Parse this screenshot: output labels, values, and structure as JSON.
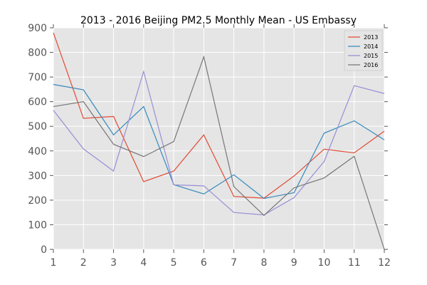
{
  "chart_data": {
    "type": "line",
    "title": "2013 - 2016 Beijing PM2.5 Monthly Mean - US Embassy",
    "xlabel": "",
    "ylabel": "",
    "x": [
      1,
      2,
      3,
      4,
      5,
      6,
      7,
      8,
      9,
      10,
      11,
      12
    ],
    "xlim": [
      1,
      12
    ],
    "ylim": [
      0,
      900
    ],
    "yticks": [
      0,
      100,
      200,
      300,
      400,
      500,
      600,
      700,
      800,
      900
    ],
    "xticks": [
      1,
      2,
      3,
      4,
      5,
      6,
      7,
      8,
      9,
      10,
      11,
      12
    ],
    "grid": true,
    "legend_position": "top-right",
    "background_color": "#e5e5e5",
    "grid_color": "#ffffff",
    "series": [
      {
        "name": "2013",
        "color": "#e24a33",
        "values": [
          880,
          532,
          540,
          275,
          318,
          465,
          215,
          208,
          298,
          407,
          392,
          480
        ]
      },
      {
        "name": "2014",
        "color": "#348abd",
        "values": [
          670,
          648,
          465,
          580,
          263,
          225,
          303,
          207,
          230,
          472,
          522,
          445
        ]
      },
      {
        "name": "2015",
        "color": "#988ed5",
        "values": [
          565,
          408,
          318,
          722,
          262,
          258,
          150,
          140,
          210,
          357,
          665,
          633
        ]
      },
      {
        "name": "2016",
        "color": "#777777",
        "values": [
          580,
          600,
          427,
          377,
          438,
          782,
          255,
          138,
          250,
          290,
          378,
          0
        ]
      }
    ]
  }
}
